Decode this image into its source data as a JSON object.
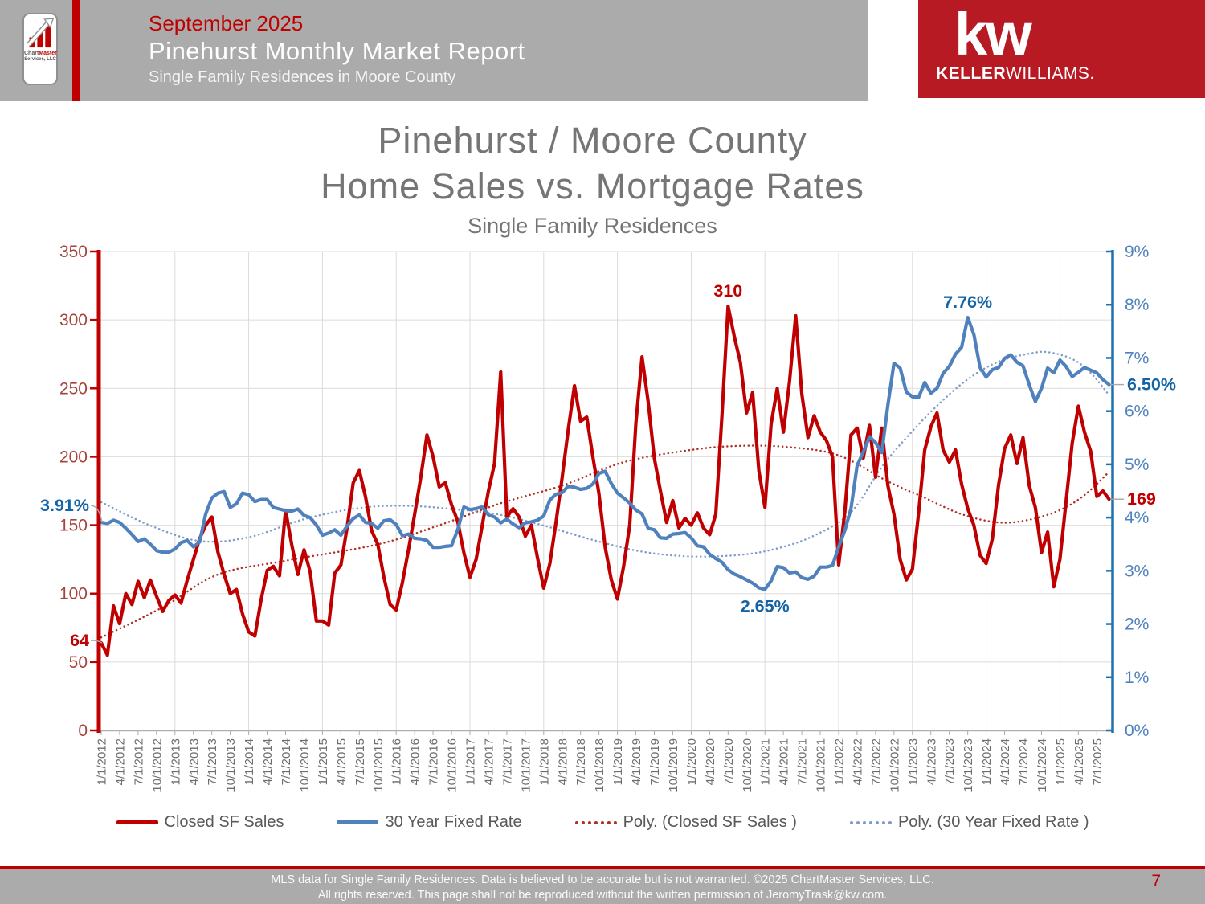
{
  "header": {
    "date": "September 2025",
    "title": "Pinehurst Monthly Market Report",
    "subtitle": "Single Family Residences in Moore County",
    "logo_line1a": "Chart",
    "logo_line1b": "Master",
    "logo_line2": "Services, LLC",
    "kw_mark": "kw",
    "kw_name_bold": "KELLER",
    "kw_name_light": "WILLIAMS."
  },
  "title_block": {
    "line1": "Pinehurst / Moore County",
    "line2": "Home Sales vs. Mortgage Rates",
    "subtitle": "Single Family Residences"
  },
  "footer": {
    "line1": "MLS data for Single Family Residences.  Data is believed to be accurate but is not warranted.  ©2025  ChartMaster Services, LLC.",
    "line2": "All rights reserved. This page shall not be reproduced without the written permission of JeromyTrask@kw.com.",
    "page_number": "7"
  },
  "chart_data": {
    "type": "line",
    "title": "Pinehurst / Moore County Home Sales vs. Mortgage Rates",
    "subtitle": "Single Family Residences",
    "grid": true,
    "x_start": "1/2012",
    "x_end": "9/2025",
    "x_tick_labels": [
      "1/1/2012",
      "4/1/2012",
      "7/1/2012",
      "10/1/2012",
      "1/1/2013",
      "4/1/2013",
      "7/1/2013",
      "10/1/2013",
      "1/1/2014",
      "4/1/2014",
      "7/1/2014",
      "10/1/2014",
      "1/1/2015",
      "4/1/2015",
      "7/1/2015",
      "10/1/2015",
      "1/1/2016",
      "4/1/2016",
      "7/1/2016",
      "10/1/2016",
      "1/1/2017",
      "4/1/2017",
      "7/1/2017",
      "10/1/2017",
      "1/1/2018",
      "4/1/2018",
      "7/1/2018",
      "10/1/2018",
      "1/1/2019",
      "4/1/2019",
      "7/1/2019",
      "10/1/2019",
      "1/1/2020",
      "4/1/2020",
      "7/1/2020",
      "10/1/2020",
      "1/1/2021",
      "4/1/2021",
      "7/1/2021",
      "10/1/2021",
      "1/1/2022",
      "4/1/2022",
      "7/1/2022",
      "10/1/2022",
      "1/1/2023",
      "4/1/2023",
      "7/1/2023",
      "10/1/2023",
      "1/1/2024",
      "4/1/2024",
      "7/1/2024",
      "10/1/2024",
      "1/1/2025",
      "4/1/2025",
      "7/1/2025"
    ],
    "x_label_color": "#6E6E6E",
    "left_axis": {
      "min": 0,
      "max": 350,
      "step": 50,
      "line_color": "#C00000",
      "label_color": "#A5433B"
    },
    "right_axis": {
      "min": 0,
      "max": 9,
      "step": 1,
      "suffix": "%",
      "line_color": "#2070B0",
      "label_color": "#4E81BD"
    },
    "gridline_color": "#DBDBDB",
    "series": [
      {
        "name": "Closed SF Sales",
        "axis": "left",
        "color": "#C00000",
        "values": [
          64,
          55,
          91,
          78,
          100,
          92,
          109,
          97,
          110,
          98,
          87,
          95,
          99,
          93,
          110,
          125,
          140,
          150,
          156,
          130,
          114,
          100,
          103,
          85,
          72,
          69,
          95,
          117,
          120,
          113,
          161,
          136,
          114,
          132,
          116,
          80,
          80,
          77,
          115,
          121,
          148,
          181,
          190,
          171,
          146,
          136,
          112,
          92,
          88,
          108,
          132,
          158,
          185,
          216,
          200,
          178,
          181,
          165,
          153,
          130,
          112,
          125,
          150,
          175,
          195,
          262,
          156,
          162,
          156,
          142,
          150,
          126,
          104,
          122,
          152,
          185,
          220,
          252,
          226,
          229,
          200,
          173,
          134,
          110,
          96,
          120,
          150,
          225,
          273,
          240,
          199,
          175,
          152,
          168,
          148,
          155,
          150,
          159,
          148,
          143,
          158,
          230,
          310,
          288,
          269,
          232,
          247,
          190,
          163,
          224,
          250,
          218,
          255,
          303,
          246,
          214,
          230,
          218,
          212,
          200,
          121,
          160,
          216,
          221,
          199,
          223,
          185,
          221,
          179,
          158,
          125,
          110,
          118,
          159,
          205,
          222,
          232,
          205,
          196,
          205,
          180,
          162,
          150,
          128,
          122,
          140,
          179,
          206,
          216,
          195,
          214,
          179,
          163,
          130,
          145,
          105,
          125,
          167,
          210,
          237,
          218,
          204,
          171,
          175,
          169
        ]
      },
      {
        "name": "30 Year Fixed Rate",
        "axis": "right",
        "color": "#4F81BD",
        "values": [
          3.91,
          3.89,
          3.95,
          3.91,
          3.8,
          3.68,
          3.55,
          3.6,
          3.5,
          3.38,
          3.35,
          3.35,
          3.41,
          3.53,
          3.57,
          3.45,
          3.54,
          4.07,
          4.37,
          4.46,
          4.49,
          4.19,
          4.26,
          4.46,
          4.43,
          4.3,
          4.34,
          4.34,
          4.19,
          4.16,
          4.13,
          4.12,
          4.16,
          4.04,
          4.0,
          3.86,
          3.67,
          3.71,
          3.77,
          3.67,
          3.84,
          3.98,
          4.05,
          3.91,
          3.89,
          3.8,
          3.94,
          3.96,
          3.87,
          3.66,
          3.69,
          3.61,
          3.6,
          3.57,
          3.44,
          3.44,
          3.46,
          3.47,
          3.77,
          4.2,
          4.15,
          4.17,
          4.2,
          4.05,
          4.01,
          3.9,
          3.97,
          3.88,
          3.81,
          3.9,
          3.92,
          3.95,
          4.03,
          4.33,
          4.44,
          4.47,
          4.59,
          4.57,
          4.53,
          4.55,
          4.63,
          4.83,
          4.87,
          4.64,
          4.46,
          4.37,
          4.27,
          4.14,
          4.07,
          3.8,
          3.77,
          3.62,
          3.61,
          3.69,
          3.7,
          3.72,
          3.62,
          3.47,
          3.45,
          3.31,
          3.23,
          3.16,
          3.02,
          2.94,
          2.89,
          2.83,
          2.77,
          2.68,
          2.65,
          2.81,
          3.08,
          3.06,
          2.96,
          2.98,
          2.87,
          2.84,
          2.9,
          3.07,
          3.07,
          3.1,
          3.45,
          3.76,
          4.17,
          4.98,
          5.23,
          5.52,
          5.41,
          5.22,
          6.11,
          6.9,
          6.81,
          6.36,
          6.27,
          6.26,
          6.54,
          6.34,
          6.43,
          6.71,
          6.84,
          7.07,
          7.2,
          7.76,
          7.44,
          6.82,
          6.64,
          6.78,
          6.82,
          6.99,
          7.06,
          6.92,
          6.85,
          6.5,
          6.18,
          6.43,
          6.81,
          6.72,
          6.96,
          6.84,
          6.65,
          6.73,
          6.82,
          6.77,
          6.72,
          6.59,
          6.5
        ]
      }
    ],
    "trendlines": [
      {
        "name": "Poly. (Closed SF Sales )",
        "axis": "left",
        "color": "#B02E25",
        "points": [
          [
            0,
            68
          ],
          [
            10,
            90
          ],
          [
            19,
            114
          ],
          [
            30,
            124
          ],
          [
            45,
            136
          ],
          [
            55,
            150
          ],
          [
            65,
            166
          ],
          [
            75,
            179
          ],
          [
            85,
            196
          ],
          [
            96,
            205
          ],
          [
            104,
            208
          ],
          [
            112,
            207
          ],
          [
            120,
            201
          ],
          [
            128,
            182
          ],
          [
            134,
            170
          ],
          [
            140,
            158
          ],
          [
            146,
            152
          ],
          [
            151,
            154
          ],
          [
            156,
            161
          ],
          [
            160,
            172
          ],
          [
            164,
            189
          ]
        ]
      },
      {
        "name": "Poly. (30 Year Fixed Rate )",
        "axis": "right",
        "color": "#7E9CC8",
        "points": [
          [
            0,
            4.29
          ],
          [
            8,
            3.85
          ],
          [
            16,
            3.56
          ],
          [
            24,
            3.63
          ],
          [
            33,
            3.97
          ],
          [
            42,
            4.18
          ],
          [
            50,
            4.22
          ],
          [
            58,
            4.15
          ],
          [
            65,
            4.05
          ],
          [
            72,
            3.85
          ],
          [
            80,
            3.58
          ],
          [
            88,
            3.36
          ],
          [
            96,
            3.27
          ],
          [
            104,
            3.3
          ],
          [
            110,
            3.42
          ],
          [
            116,
            3.66
          ],
          [
            122,
            4.1
          ],
          [
            127,
            4.95
          ],
          [
            131,
            5.5
          ],
          [
            136,
            6.1
          ],
          [
            141,
            6.6
          ],
          [
            146,
            6.93
          ],
          [
            151,
            7.08
          ],
          [
            154,
            7.11
          ],
          [
            158,
            6.98
          ],
          [
            161,
            6.72
          ],
          [
            164,
            6.3
          ]
        ]
      }
    ],
    "annotations": [
      {
        "text": "64",
        "color": "#C00000",
        "axis": "left",
        "month": 0,
        "value": 64,
        "placement": "left"
      },
      {
        "text": "3.91%",
        "color": "#1464A5",
        "axis": "right",
        "month": 0,
        "value": 3.91,
        "placement": "left"
      },
      {
        "text": "310",
        "color": "#C00000",
        "axis": "left",
        "month": 102,
        "value": 310,
        "placement": "above"
      },
      {
        "text": "2.65%",
        "color": "#1464A5",
        "axis": "right",
        "month": 108,
        "value": 2.65,
        "placement": "below"
      },
      {
        "text": "7.76%",
        "color": "#1464A5",
        "axis": "right",
        "month": 141,
        "value": 7.76,
        "placement": "above"
      },
      {
        "text": "6.50%",
        "color": "#1464A5",
        "axis": "right",
        "month": 164,
        "value": 6.5,
        "placement": "right"
      },
      {
        "text": "169",
        "color": "#C00000",
        "axis": "left",
        "month": 164,
        "value": 169,
        "placement": "right"
      }
    ],
    "legend": [
      {
        "label": "Closed SF Sales",
        "color": "#C00000",
        "style": "solid"
      },
      {
        "label": "30 Year Fixed Rate",
        "color": "#4F81BD",
        "style": "solid"
      },
      {
        "label": "Poly. (Closed SF Sales )",
        "color": "#B02E25",
        "style": "dotted"
      },
      {
        "label": "Poly. (30 Year Fixed Rate )",
        "color": "#7E9CC8",
        "style": "dotted"
      }
    ]
  }
}
